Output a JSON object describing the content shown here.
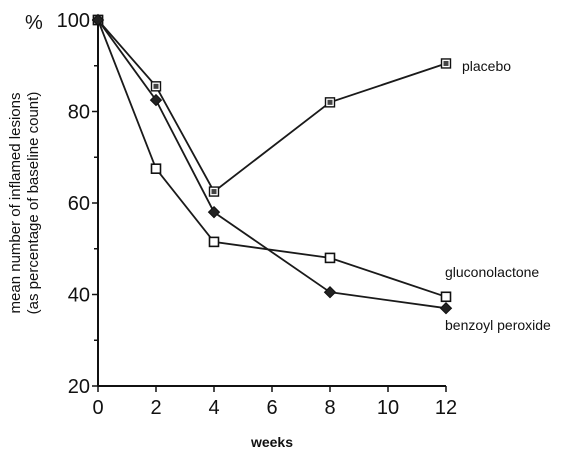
{
  "chart_data": {
    "type": "line",
    "xlabel": "weeks",
    "ylabel_lines": [
      "mean number of inflamed lesions",
      "(as percentage of baseline count)"
    ],
    "y_unit": "%",
    "xlim": [
      0,
      12
    ],
    "ylim": [
      20,
      100
    ],
    "x_ticks": [
      0,
      2,
      4,
      6,
      8,
      10,
      12
    ],
    "y_ticks": [
      20,
      40,
      60,
      80,
      100
    ],
    "grid": false,
    "series": [
      {
        "name": "placebo",
        "marker": "filled-square",
        "x": [
          0,
          2,
          4,
          8,
          12
        ],
        "values": [
          100,
          85.5,
          62.5,
          82,
          90.5
        ]
      },
      {
        "name": "gluconolactone",
        "marker": "open-square",
        "x": [
          0,
          2,
          4,
          8,
          12
        ],
        "values": [
          100,
          67.5,
          51.5,
          48,
          39.5
        ]
      },
      {
        "name": "benzoyl peroxide",
        "marker": "diamond",
        "x": [
          0,
          2,
          4,
          8,
          12
        ],
        "values": [
          100,
          82.5,
          58,
          40.5,
          37
        ]
      }
    ]
  }
}
